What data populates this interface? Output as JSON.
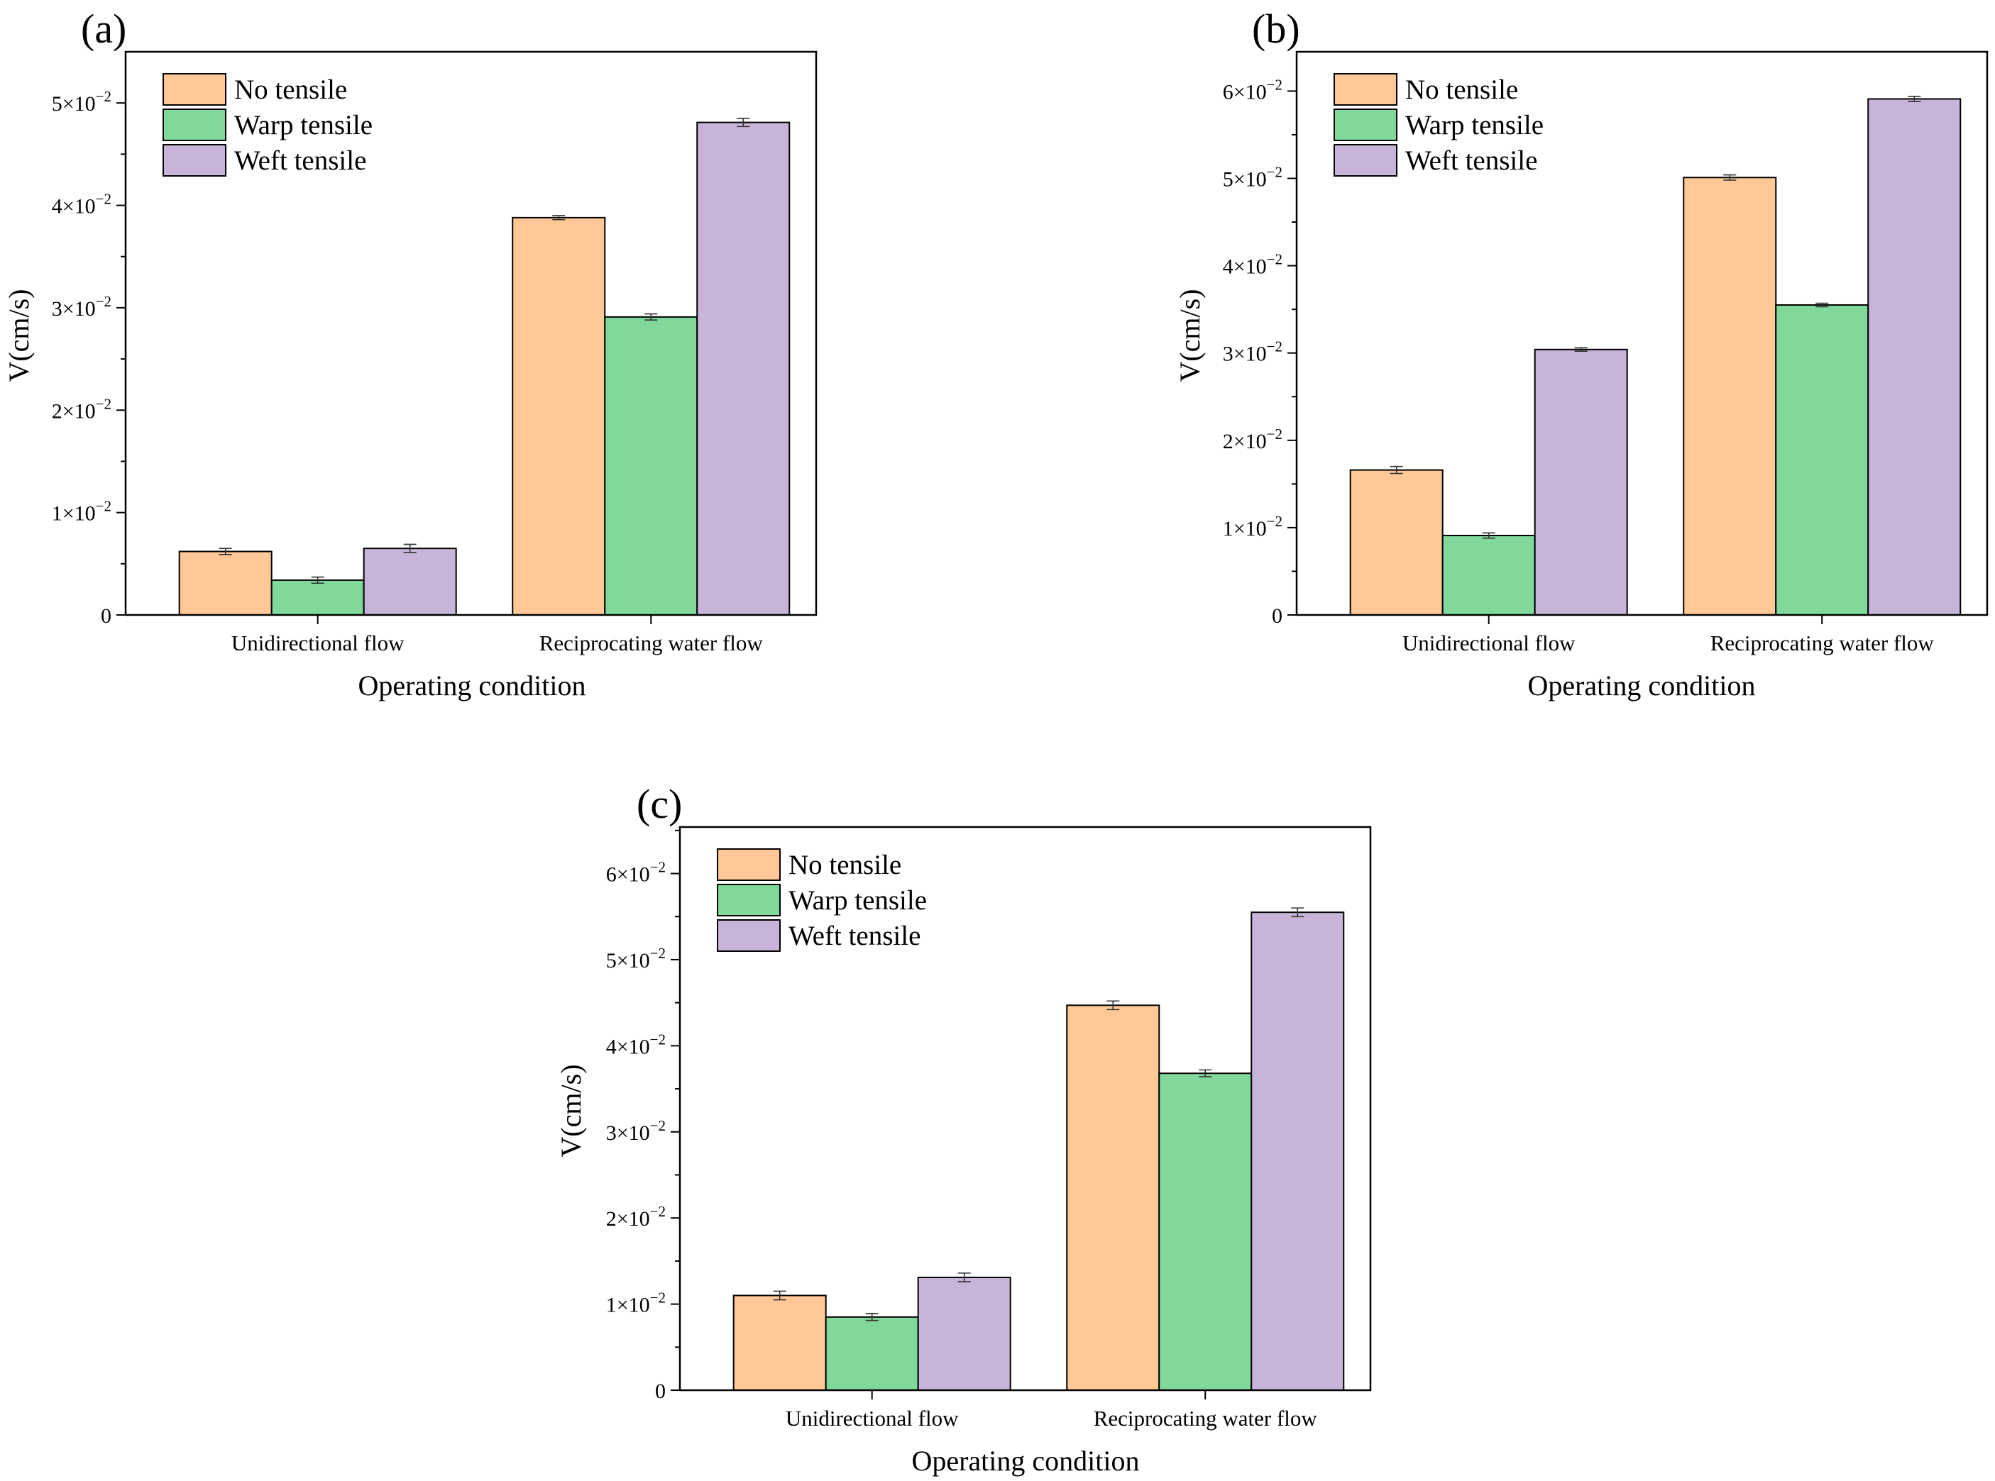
{
  "figure": {
    "panels": [
      "(a)",
      "(b)",
      "(c)"
    ]
  },
  "chart_data": [
    {
      "type": "bar",
      "panel": "(a)",
      "categories": [
        "Unidirectional flow",
        "Reciprocating water flow"
      ],
      "series": [
        {
          "name": "No tensile",
          "values": [
            0.0062,
            0.0388
          ],
          "errors": [
            0.0003,
            0.0002
          ],
          "color": "#FFC896"
        },
        {
          "name": "Warp tensile",
          "values": [
            0.0034,
            0.0291
          ],
          "errors": [
            0.0003,
            0.0003
          ],
          "color": "#80D89A"
        },
        {
          "name": "Weft tensile",
          "values": [
            0.0065,
            0.0481
          ],
          "errors": [
            0.0004,
            0.0004
          ],
          "color": "#C8B4D8"
        }
      ],
      "xlabel": "Operating condition",
      "ylabel": "V(cm/s)",
      "ylim": [
        0,
        0.055
      ],
      "yticks": [
        0,
        0.01,
        0.02,
        0.03,
        0.04,
        0.05
      ],
      "ytick_labels": [
        {
          "mant": "0",
          "exp": ""
        },
        {
          "mant": "1×10",
          "exp": "−2"
        },
        {
          "mant": "2×10",
          "exp": "−2"
        },
        {
          "mant": "3×10",
          "exp": "−2"
        },
        {
          "mant": "4×10",
          "exp": "−2"
        },
        {
          "mant": "5×10",
          "exp": "−2"
        }
      ],
      "legend": "top-left",
      "grid": false
    },
    {
      "type": "bar",
      "panel": "(b)",
      "categories": [
        "Unidirectional flow",
        "Reciprocating water flow"
      ],
      "series": [
        {
          "name": "No tensile",
          "values": [
            0.0166,
            0.0501
          ],
          "errors": [
            0.0004,
            0.0003
          ],
          "color": "#FFC896"
        },
        {
          "name": "Warp tensile",
          "values": [
            0.0091,
            0.0355
          ],
          "errors": [
            0.0003,
            0.0002
          ],
          "color": "#80D89A"
        },
        {
          "name": "Weft tensile",
          "values": [
            0.0304,
            0.0591
          ],
          "errors": [
            0.0002,
            0.0003
          ],
          "color": "#C8B4D8"
        }
      ],
      "xlabel": "Operating condition",
      "ylabel": "V(cm/s)",
      "ylim": [
        0,
        0.0645
      ],
      "yticks": [
        0,
        0.01,
        0.02,
        0.03,
        0.04,
        0.05,
        0.06
      ],
      "ytick_labels": [
        {
          "mant": "0",
          "exp": ""
        },
        {
          "mant": "1×10",
          "exp": "−2"
        },
        {
          "mant": "2×10",
          "exp": "−2"
        },
        {
          "mant": "3×10",
          "exp": "−2"
        },
        {
          "mant": "4×10",
          "exp": "−2"
        },
        {
          "mant": "5×10",
          "exp": "−2"
        },
        {
          "mant": "6×10",
          "exp": "−2"
        }
      ],
      "legend": "top-left",
      "grid": false
    },
    {
      "type": "bar",
      "panel": "(c)",
      "categories": [
        "Unidirectional flow",
        "Reciprocating water flow"
      ],
      "series": [
        {
          "name": "No tensile",
          "values": [
            0.011,
            0.0447
          ],
          "errors": [
            0.0005,
            0.0005
          ],
          "color": "#FFC896"
        },
        {
          "name": "Warp tensile",
          "values": [
            0.0085,
            0.0368
          ],
          "errors": [
            0.0004,
            0.0004
          ],
          "color": "#80D89A"
        },
        {
          "name": "Weft tensile",
          "values": [
            0.0131,
            0.0555
          ],
          "errors": [
            0.0005,
            0.0005
          ],
          "color": "#C8B4D8"
        }
      ],
      "xlabel": "Operating condition",
      "ylabel": "V(cm/s)",
      "ylim": [
        0,
        0.0654
      ],
      "yticks": [
        0,
        0.01,
        0.02,
        0.03,
        0.04,
        0.05,
        0.06
      ],
      "ytick_labels": [
        {
          "mant": "0",
          "exp": ""
        },
        {
          "mant": "1×10",
          "exp": "−2"
        },
        {
          "mant": "2×10",
          "exp": "−2"
        },
        {
          "mant": "3×10",
          "exp": "−2"
        },
        {
          "mant": "4×10",
          "exp": "−2"
        },
        {
          "mant": "5×10",
          "exp": "−2"
        },
        {
          "mant": "6×10",
          "exp": "−2"
        }
      ],
      "legend": "top-left",
      "grid": false
    }
  ]
}
